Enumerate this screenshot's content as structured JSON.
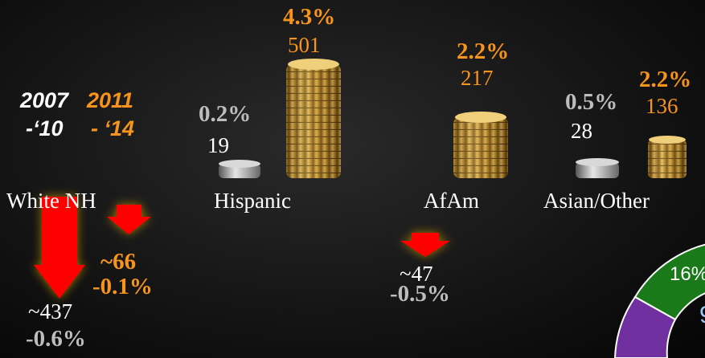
{
  "period_headers": [
    {
      "line1": "2007",
      "line2": "-‘10"
    },
    {
      "line1": "2011",
      "line2": "- ‘14"
    }
  ],
  "groups": [
    {
      "label": "White NH",
      "change_2011_14": "~66",
      "change_2011_14_pct": "-0.1%",
      "change_2007_10": "~437",
      "change_2007_10_pct": "-0.6%"
    },
    {
      "label": "Hispanic",
      "pct_2007_10": "0.2%",
      "count_2007_10": "19",
      "pct_2011_14": "4.3%",
      "count_2011_14": "501"
    },
    {
      "label": "AfAm",
      "pct_2011_14": "2.2%",
      "count_2011_14": "217",
      "change_2007_10": "~47",
      "change_2007_10_pct": "-0.5%"
    },
    {
      "label": "Asian/Other",
      "pct_2007_10": "0.5%",
      "count_2007_10": "28",
      "pct_2011_14": "2.2%",
      "count_2011_14": "136"
    }
  ],
  "donut": {
    "segment_label": "16%",
    "center_fragment": "9"
  }
}
